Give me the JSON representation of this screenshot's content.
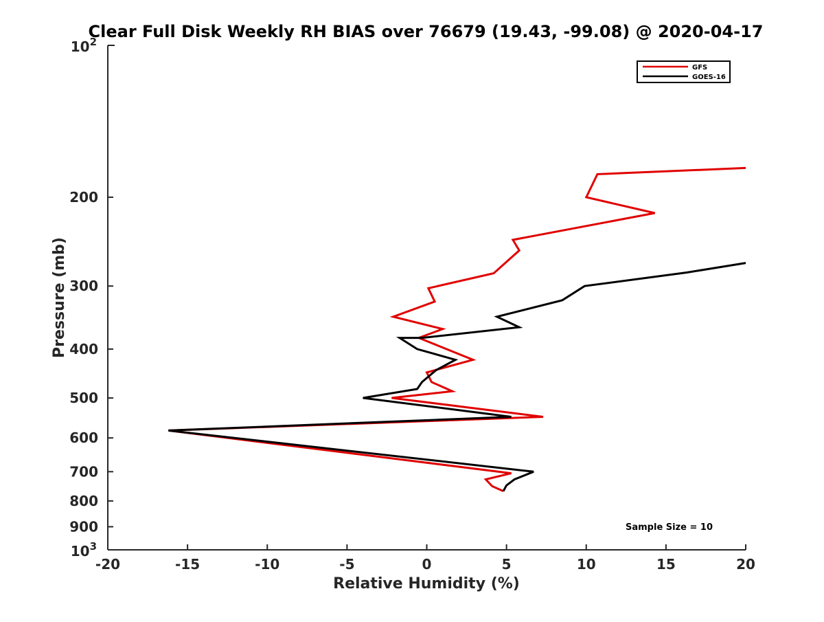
{
  "chart_data": {
    "type": "line",
    "title": "Clear Full Disk Weekly RH BIAS over 76679 (19.43, -99.08) @ 2020-04-17",
    "xlabel": "Relative Humidity (%)",
    "ylabel": "Pressure (mb)",
    "xlim": [
      -20,
      20
    ],
    "ylim": [
      100,
      1000
    ],
    "y_scale": "log",
    "y_direction": "reversed",
    "x_ticks": [
      -20,
      -15,
      -10,
      -5,
      0,
      5,
      10,
      15,
      20
    ],
    "x_tick_labels": [
      "-20",
      "-15",
      "-10",
      "-5",
      "0",
      "5",
      "10",
      "15",
      "20"
    ],
    "y_ticks": [
      200,
      300,
      400,
      500,
      600,
      700,
      800,
      900
    ],
    "y_tick_labels": [
      "200",
      "300",
      "400",
      "500",
      "600",
      "700",
      "800",
      "900"
    ],
    "y_decade_labels": [
      {
        "value": 100,
        "base": "10",
        "exp": "2"
      },
      {
        "value": 1000,
        "base": "10",
        "exp": "3"
      }
    ],
    "grid": false,
    "legend_position": "top-right",
    "annotation": "Sample Size = 10",
    "series": [
      {
        "name": "GFS",
        "color": "#e00000",
        "points": [
          [
            20,
            175
          ],
          [
            10.7,
            180
          ],
          [
            10,
            200
          ],
          [
            14.3,
            215
          ],
          [
            5.4,
            243
          ],
          [
            5.8,
            255
          ],
          [
            4.2,
            283
          ],
          [
            0.1,
            303
          ],
          [
            0.5,
            322
          ],
          [
            -2.1,
            345
          ],
          [
            1.0,
            365
          ],
          [
            -0.5,
            380
          ],
          [
            2.9,
            420
          ],
          [
            0,
            445
          ],
          [
            0.3,
            465
          ],
          [
            1.6,
            485
          ],
          [
            -2.2,
            500
          ],
          [
            7.3,
            545
          ],
          [
            -16.2,
            580
          ],
          [
            5.3,
            705
          ],
          [
            3.7,
            725
          ],
          [
            4.1,
            748
          ],
          [
            4.8,
            765
          ]
        ]
      },
      {
        "name": "GOES-16",
        "color": "#000000",
        "points": [
          [
            20,
            270
          ],
          [
            16.3,
            282
          ],
          [
            9.9,
            300
          ],
          [
            8.5,
            320
          ],
          [
            4.4,
            345
          ],
          [
            5.8,
            362
          ],
          [
            -0.3,
            380
          ],
          [
            -1.7,
            380
          ],
          [
            -0.6,
            400
          ],
          [
            1.8,
            420
          ],
          [
            0.6,
            440
          ],
          [
            -0.3,
            465
          ],
          [
            -0.6,
            480
          ],
          [
            -4.0,
            500
          ],
          [
            5.3,
            545
          ],
          [
            -16.2,
            580
          ],
          [
            6.7,
            700
          ],
          [
            5.5,
            725
          ],
          [
            5.0,
            745
          ],
          [
            4.8,
            765
          ]
        ]
      }
    ]
  }
}
